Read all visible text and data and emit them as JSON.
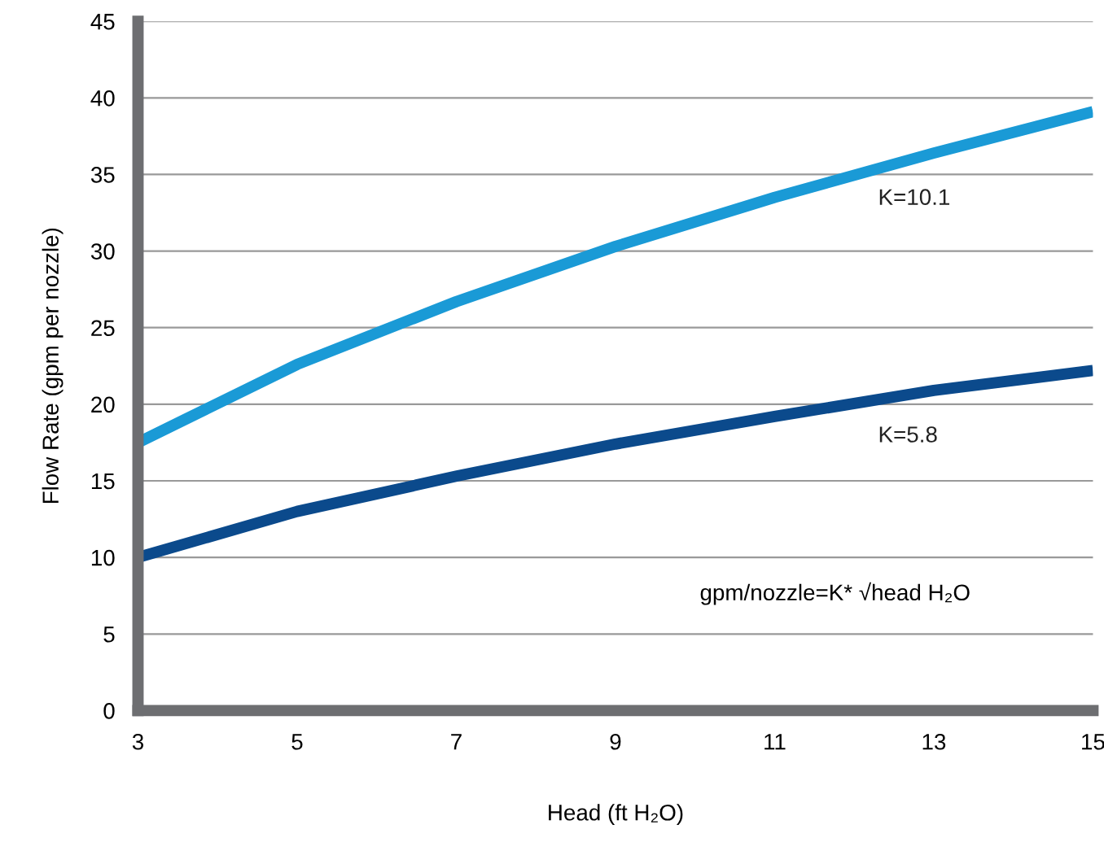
{
  "chart_data": {
    "type": "line",
    "xlabel": "Head (ft H₂O)",
    "ylabel": "Flow Rate (gpm per nozzle)",
    "x": [
      3,
      5,
      7,
      9,
      11,
      13,
      15
    ],
    "series": [
      {
        "name": "K=10.1",
        "color": "#1a9ad6",
        "values": [
          17.5,
          22.6,
          26.7,
          30.3,
          33.5,
          36.4,
          39.1
        ]
      },
      {
        "name": "K=5.8",
        "color": "#0b4a8c",
        "values": [
          10.0,
          13.0,
          15.3,
          17.4,
          19.2,
          20.9,
          22.2
        ]
      }
    ],
    "xlim": [
      3,
      15
    ],
    "xticks": [
      3,
      5,
      7,
      9,
      11,
      13,
      15
    ],
    "ylim": [
      0,
      45
    ],
    "yticks": [
      0,
      5,
      10,
      15,
      20,
      25,
      30,
      35,
      40,
      45
    ],
    "grid": "y",
    "marker": "none",
    "line_style": "solid",
    "legend": false,
    "annotations": [
      "gpm/nozzle=K* √head H₂O"
    ]
  }
}
